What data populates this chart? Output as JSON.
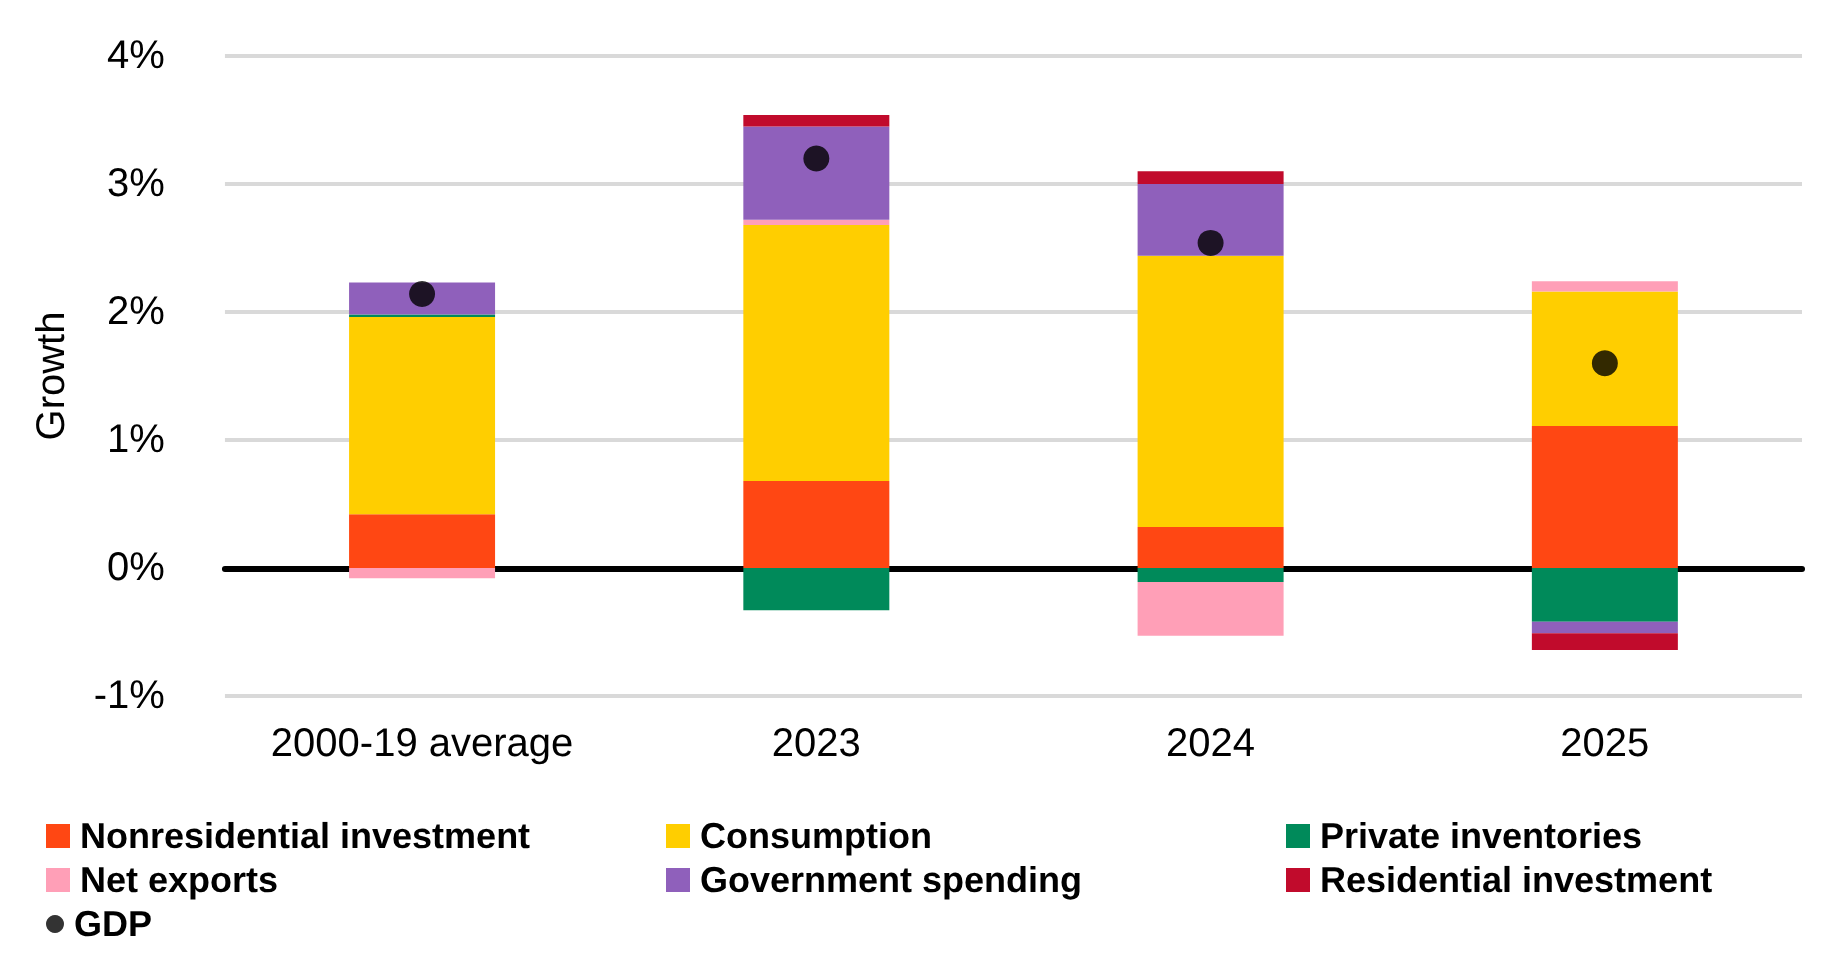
{
  "chart_data": {
    "type": "bar",
    "stacked": true,
    "ylabel": "Growth",
    "categories": [
      "2000-19 average",
      "2023",
      "2024",
      "2025"
    ],
    "series": [
      {
        "name": "Nonresidential investment",
        "color": "#ff4713",
        "values": [
          0.42,
          0.68,
          0.32,
          1.11
        ]
      },
      {
        "name": "Consumption",
        "color": "#ffce00",
        "values": [
          1.54,
          2.0,
          2.12,
          1.05
        ]
      },
      {
        "name": "Private inventories",
        "color": "#008a5a",
        "values": [
          0.02,
          -0.33,
          -0.11,
          -0.42
        ]
      },
      {
        "name": "Net exports",
        "color": "#ff9fb7",
        "values": [
          -0.08,
          0.04,
          -0.42,
          0.08
        ]
      },
      {
        "name": "Government spending",
        "color": "#8f60bb",
        "values": [
          0.25,
          0.73,
          0.56,
          -0.09
        ]
      },
      {
        "name": "Residential investment",
        "color": "#c10b2c",
        "values": [
          0,
          0.09,
          0.1,
          -0.13
        ]
      },
      {
        "name": "GDP",
        "type": "scatter",
        "marker": "circle",
        "color": "#000000",
        "values": [
          2.14,
          3.2,
          2.54,
          1.6
        ]
      }
    ],
    "ylim": [
      -1,
      4
    ],
    "yticks": [
      {
        "value": -1,
        "label": "-1%"
      },
      {
        "value": 0,
        "label": "0%"
      },
      {
        "value": 1,
        "label": "1%"
      },
      {
        "value": 2,
        "label": "2%"
      },
      {
        "value": 3,
        "label": "3%"
      },
      {
        "value": 4,
        "label": "4%"
      }
    ],
    "grid": "y",
    "legend": "bottom"
  }
}
